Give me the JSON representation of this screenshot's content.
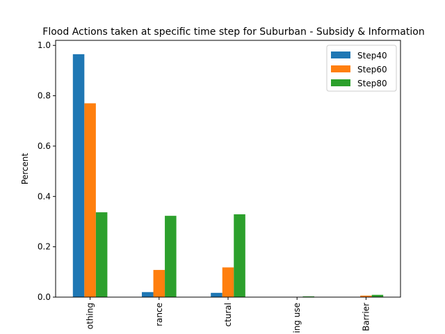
{
  "chart_data": {
    "type": "bar",
    "title": "Flood Actions taken at specific time step for Suburban - Subsidy & Information",
    "xlabel": "",
    "ylabel": "Percent",
    "ylim": [
      0,
      1.02
    ],
    "yticks": [
      "0.0",
      "0.2",
      "0.4",
      "0.6",
      "0.8",
      "1.0"
    ],
    "categories": [
      "Do Nothing",
      "Insurance",
      "Structural",
      "Change building use",
      "Barrier"
    ],
    "category_tick_labels": [
      "othing",
      "rance",
      "ctural",
      "ing use",
      "Barrier"
    ],
    "series": [
      {
        "name": "Step40",
        "color": "#1f77b4",
        "values": [
          0.965,
          0.02,
          0.017,
          0.0,
          0.0
        ]
      },
      {
        "name": "Step60",
        "color": "#ff7f0e",
        "values": [
          0.77,
          0.108,
          0.118,
          0.0,
          0.006
        ]
      },
      {
        "name": "Step80",
        "color": "#2ca02c",
        "values": [
          0.337,
          0.323,
          0.329,
          0.003,
          0.009
        ]
      }
    ],
    "legend_position": "top-right",
    "grid": false
  }
}
